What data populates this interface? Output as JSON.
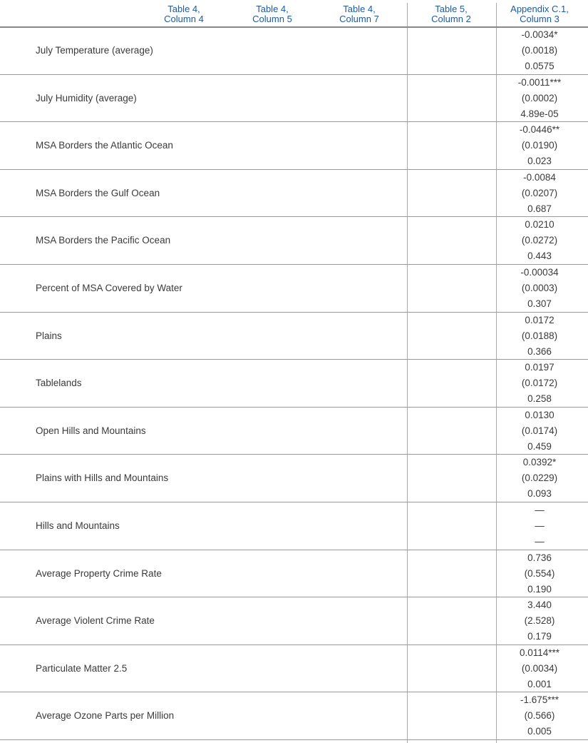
{
  "header": [
    "Table 4,\nColumn 4",
    "Table 4,\nColumn 5",
    "Table 4,\nColumn 7",
    "Table 5,\nColumn 2",
    "Appendix C.1,\nColumn 3"
  ],
  "rows": [
    {
      "label": "July Temperature (average)",
      "coef": "-0.0034*",
      "se": "(0.0018)",
      "p": "0.0575"
    },
    {
      "label": "July Humidity (average)",
      "coef": "-0.0011***",
      "se": "(0.0002)",
      "p": "4.89e-05"
    },
    {
      "label": "MSA Borders the Atlantic Ocean",
      "coef": "-0.0446**",
      "se": "(0.0190)",
      "p": "0.023"
    },
    {
      "label": "MSA Borders the Gulf Ocean",
      "coef": "-0.0084",
      "se": "(0.0207)",
      "p": "0.687"
    },
    {
      "label": "MSA Borders the Pacific Ocean",
      "coef": "0.0210",
      "se": "(0.0272)",
      "p": "0.443"
    },
    {
      "label": "Percent of MSA Covered by Water",
      "coef": "-0.00034",
      "se": "(0.0003)",
      "p": "0.307"
    },
    {
      "label": "Plains",
      "coef": "0.0172",
      "se": "(0.0188)",
      "p": "0.366"
    },
    {
      "label": "Tablelands",
      "coef": "0.0197",
      "se": "(0.0172)",
      "p": "0.258"
    },
    {
      "label": "Open Hills and Mountains",
      "coef": "0.0130",
      "se": "(0.0174)",
      "p": "0.459"
    },
    {
      "label": "Plains with Hills and Mountains",
      "coef": "0.0392*",
      "se": "(0.0229)",
      "p": "0.093"
    },
    {
      "label": "Hills and Mountains",
      "coef": "—",
      "se": "—",
      "p": "—"
    },
    {
      "label": "Average Property Crime Rate",
      "coef": "0.736",
      "se": "(0.554)",
      "p": "0.190"
    },
    {
      "label": "Average Violent Crime Rate",
      "coef": "3.440",
      "se": "(2.528)",
      "p": "0.179"
    },
    {
      "label": "Particulate Matter 2.5",
      "coef": "0.0114***",
      "se": "(0.0034)",
      "p": "0.001"
    },
    {
      "label": "Average Ozone Parts per Million",
      "coef": "-1.675***",
      "se": "(0.566)",
      "p": "0.005"
    }
  ]
}
